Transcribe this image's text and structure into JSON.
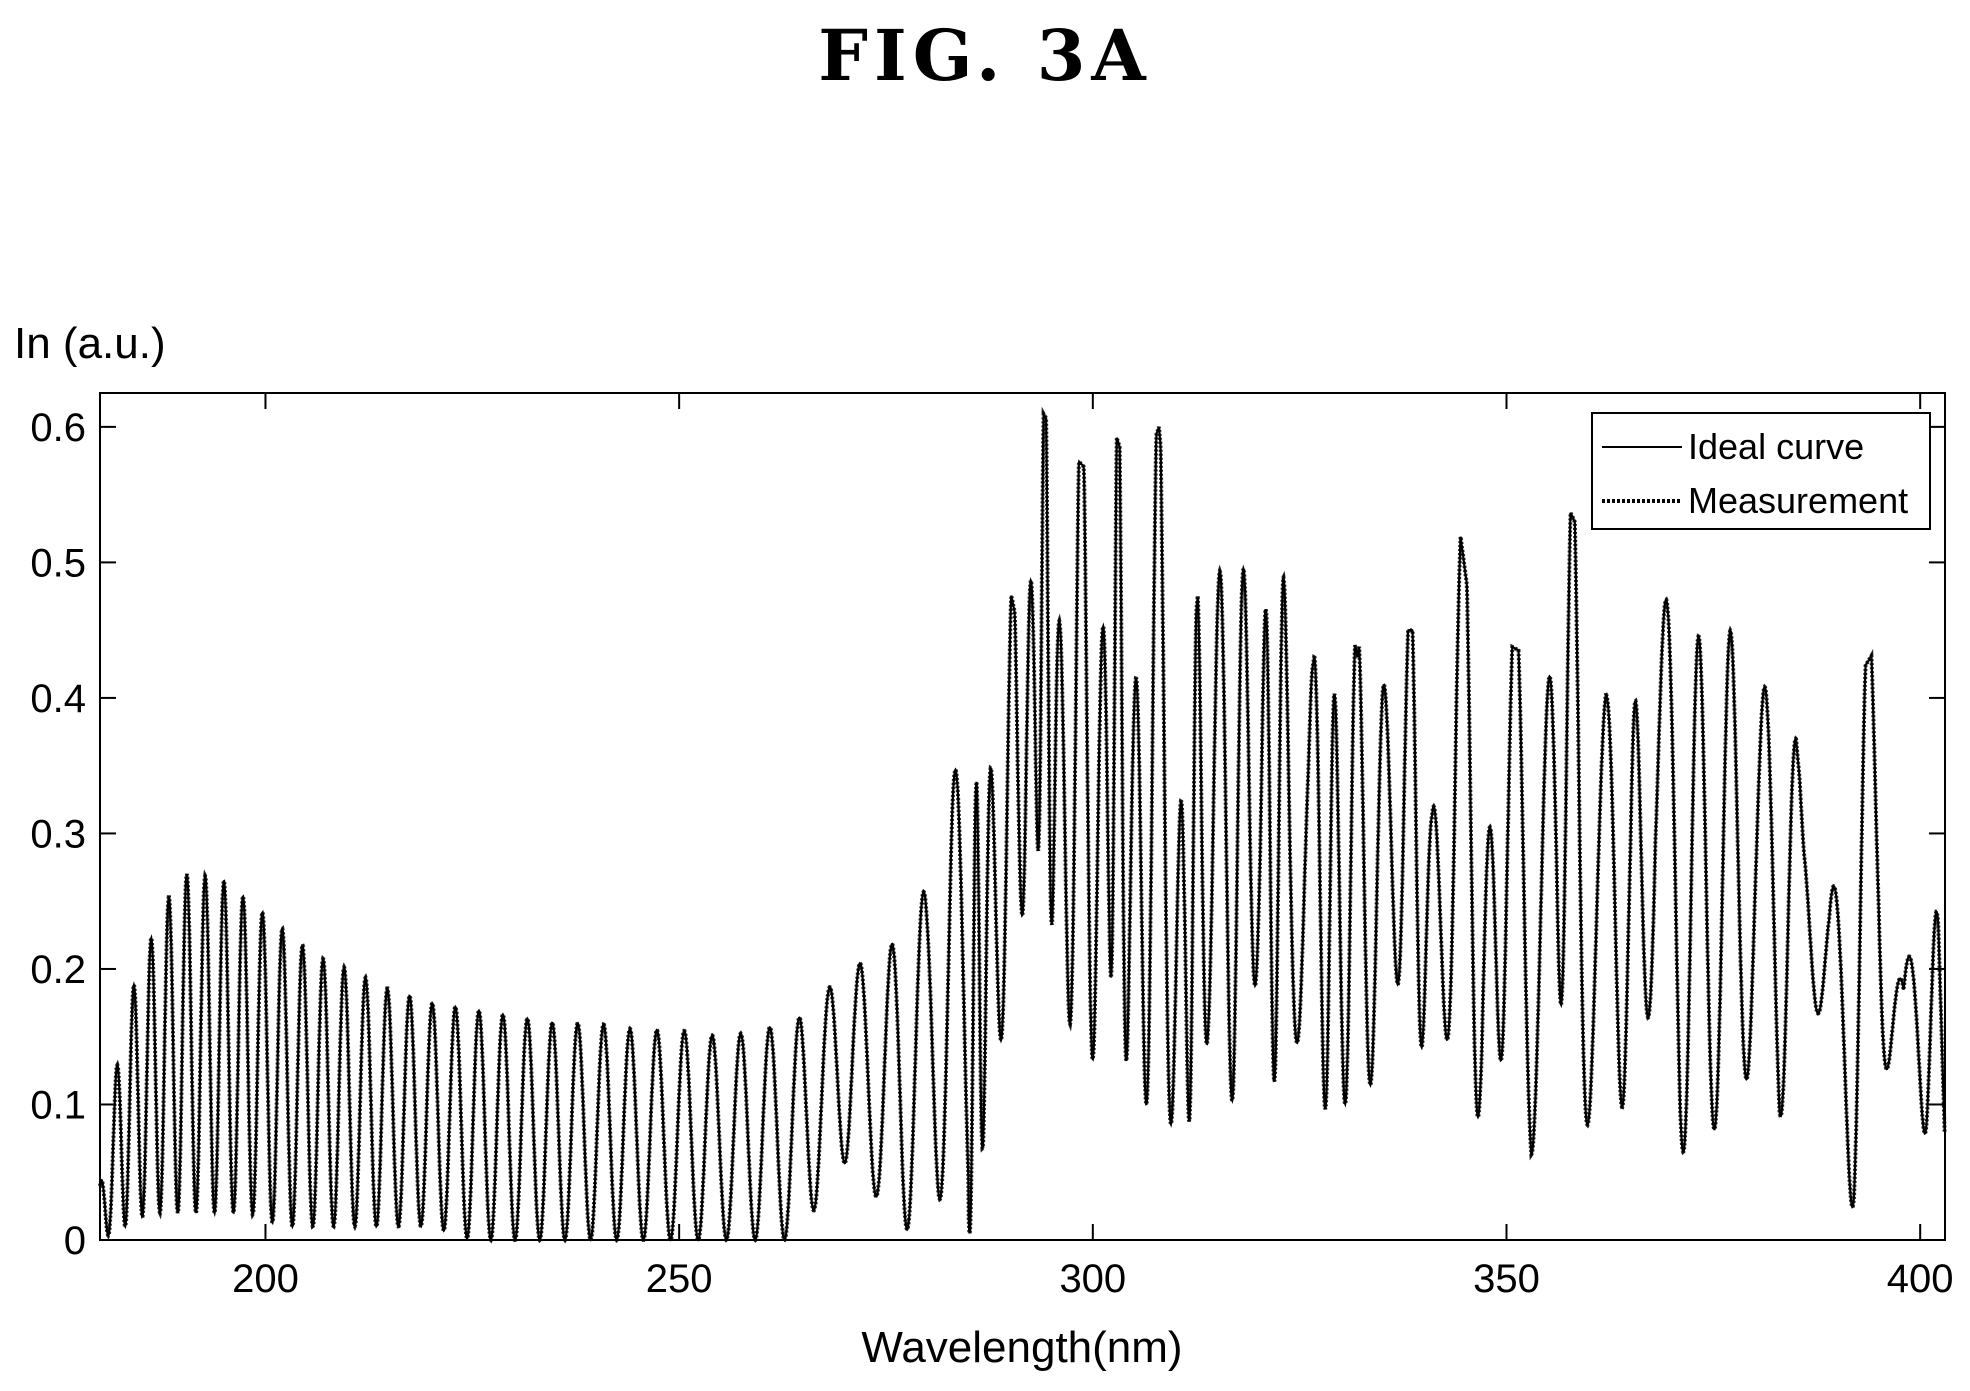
{
  "figure": {
    "title": "FIG.  3A"
  },
  "chart_data": {
    "type": "line",
    "xlabel": "Wavelength(nm)",
    "ylabel": "In (a.u.)",
    "xlim": [
      180,
      403
    ],
    "ylim": [
      0,
      0.625
    ],
    "xticks": [
      200,
      250,
      300,
      350,
      400
    ],
    "yticks": [
      0,
      0.1,
      0.2,
      0.3,
      0.4,
      0.5,
      0.6
    ],
    "ytick_labels": [
      "0",
      "0.1",
      "0.2",
      "0.3",
      "0.4",
      "0.5",
      "0.6"
    ],
    "grid": false,
    "legend_position": "top-right",
    "series": [
      {
        "name": "Ideal curve",
        "style": "solid",
        "color": "#000000"
      },
      {
        "name": "Measurement",
        "style": "dotted",
        "color": "#000000"
      }
    ],
    "envelope": {
      "x": [
        180,
        183,
        186,
        188,
        190,
        192,
        195,
        198,
        202,
        206,
        210,
        215,
        220,
        225,
        230,
        235,
        240,
        245,
        250,
        255,
        260,
        265,
        268,
        271,
        274,
        277,
        280,
        283,
        285,
        287,
        289,
        291,
        293,
        296,
        299,
        302,
        305,
        308,
        311,
        314,
        317,
        320,
        323,
        326,
        329,
        332,
        335,
        338,
        341,
        344,
        347,
        350,
        353,
        356,
        359,
        362,
        365,
        368,
        371,
        374,
        377,
        380,
        383,
        386,
        389,
        392,
        395,
        398,
        401,
        403
      ],
      "peak": [
        0.04,
        0.17,
        0.22,
        0.25,
        0.27,
        0.27,
        0.265,
        0.25,
        0.23,
        0.21,
        0.2,
        0.185,
        0.175,
        0.17,
        0.165,
        0.16,
        0.16,
        0.155,
        0.155,
        0.15,
        0.155,
        0.165,
        0.185,
        0.21,
        0.19,
        0.24,
        0.26,
        0.36,
        0.3,
        0.38,
        0.51,
        0.45,
        0.62,
        0.59,
        0.57,
        0.61,
        0.55,
        0.6,
        0.38,
        0.55,
        0.57,
        0.45,
        0.57,
        0.4,
        0.52,
        0.43,
        0.56,
        0.45,
        0.45,
        0.54,
        0.4,
        0.44,
        0.43,
        0.56,
        0.52,
        0.48,
        0.36,
        0.57,
        0.47,
        0.48,
        0.47,
        0.44,
        0.51,
        0.3,
        0.31,
        0.41,
        0.44,
        0.24,
        0.47,
        0.07
      ],
      "trough": [
        0.0,
        0.01,
        0.02,
        0.02,
        0.02,
        0.02,
        0.02,
        0.02,
        0.01,
        0.01,
        0.01,
        0.01,
        0.01,
        0.0,
        0.0,
        0.0,
        0.0,
        0.0,
        0.0,
        0.0,
        0.0,
        0.0,
        0.05,
        0.06,
        0.03,
        0.0,
        0.04,
        0.02,
        0.0,
        0.08,
        0.15,
        0.22,
        0.3,
        0.2,
        0.1,
        0.2,
        0.1,
        0.1,
        0.07,
        0.15,
        0.1,
        0.2,
        0.07,
        0.2,
        0.05,
        0.15,
        0.08,
        0.25,
        0.06,
        0.2,
        0.07,
        0.15,
        0.06,
        0.2,
        0.06,
        0.15,
        0.07,
        0.2,
        0.06,
        0.1,
        0.05,
        0.15,
        0.08,
        0.25,
        0.08,
        0.02,
        0.15,
        0.07,
        0.08,
        0.04
      ],
      "fringe_period_nm": [
        2.0,
        2.0,
        2.2,
        2.4,
        2.6,
        2.8,
        3.2,
        3.4,
        3.6,
        3.8,
        3.8,
        2.2,
        2.2,
        2.4,
        2.6,
        2.8,
        3.0,
        3.0,
        3.4,
        3.6,
        3.8,
        4.0
      ]
    }
  }
}
